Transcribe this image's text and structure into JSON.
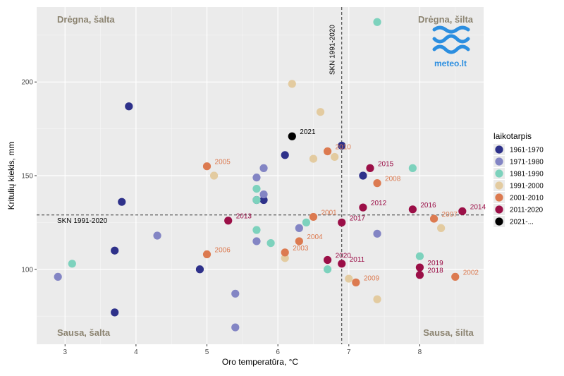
{
  "chart_data": {
    "type": "scatter",
    "title": "",
    "xlabel": "Oro temperatūra, °C",
    "ylabel": "Kritulių kiekis, mm",
    "xlim": [
      2.6,
      8.9
    ],
    "ylim": [
      60,
      240
    ],
    "x_ticks": [
      3,
      4,
      5,
      6,
      7,
      8
    ],
    "y_ticks": [
      100,
      150,
      200
    ],
    "grid": true,
    "legend_position": "right",
    "legend_title": "laikotarpis",
    "reference_lines": {
      "vertical": {
        "x": 6.9,
        "label": "SKN 1991-2020"
      },
      "horizontal": {
        "y": 129,
        "label": "SKN 1991-2020"
      }
    },
    "quadrant_labels": {
      "top_left": "Drėgna, šalta",
      "top_right": "Drėgna, šilta",
      "bottom_left": "Sausa, šalta",
      "bottom_right": "Sausa, šilta"
    },
    "series": [
      {
        "name": "1961-1970",
        "color": "#2e318a",
        "points": [
          {
            "x": 3.9,
            "y": 187
          },
          {
            "x": 3.8,
            "y": 136
          },
          {
            "x": 3.7,
            "y": 110
          },
          {
            "x": 3.7,
            "y": 77
          },
          {
            "x": 4.9,
            "y": 100
          },
          {
            "x": 5.8,
            "y": 137
          },
          {
            "x": 6.1,
            "y": 161
          },
          {
            "x": 6.9,
            "y": 166
          },
          {
            "x": 7.2,
            "y": 150
          },
          {
            "x": 5.7,
            "y": 137
          }
        ]
      },
      {
        "name": "1971-1980",
        "color": "#8385c4",
        "points": [
          {
            "x": 2.9,
            "y": 96
          },
          {
            "x": 4.3,
            "y": 118
          },
          {
            "x": 5.4,
            "y": 87
          },
          {
            "x": 5.4,
            "y": 69
          },
          {
            "x": 5.7,
            "y": 149
          },
          {
            "x": 5.8,
            "y": 154
          },
          {
            "x": 5.8,
            "y": 140
          },
          {
            "x": 5.7,
            "y": 115
          },
          {
            "x": 6.3,
            "y": 122
          },
          {
            "x": 7.4,
            "y": 119
          }
        ]
      },
      {
        "name": "1981-1990",
        "color": "#7dd2bd",
        "points": [
          {
            "x": 3.1,
            "y": 103
          },
          {
            "x": 5.7,
            "y": 143
          },
          {
            "x": 5.7,
            "y": 137
          },
          {
            "x": 5.7,
            "y": 121
          },
          {
            "x": 5.9,
            "y": 114
          },
          {
            "x": 6.4,
            "y": 125
          },
          {
            "x": 6.7,
            "y": 100
          },
          {
            "x": 7.4,
            "y": 232
          },
          {
            "x": 7.9,
            "y": 154
          },
          {
            "x": 8.0,
            "y": 107
          }
        ]
      },
      {
        "name": "1991-2000",
        "color": "#e3cba0",
        "points": [
          {
            "x": 5.1,
            "y": 150
          },
          {
            "x": 6.2,
            "y": 199
          },
          {
            "x": 6.6,
            "y": 184
          },
          {
            "x": 6.5,
            "y": 159
          },
          {
            "x": 6.8,
            "y": 160
          },
          {
            "x": 6.1,
            "y": 106
          },
          {
            "x": 7.0,
            "y": 95
          },
          {
            "x": 7.4,
            "y": 84
          },
          {
            "x": 8.3,
            "y": 122
          }
        ]
      },
      {
        "name": "2001-2010",
        "color": "#dc7a50",
        "points": [
          {
            "x": 6.5,
            "y": 128,
            "label": "2001"
          },
          {
            "x": 8.5,
            "y": 96,
            "label": "2002"
          },
          {
            "x": 6.1,
            "y": 109,
            "label": "2003"
          },
          {
            "x": 6.3,
            "y": 115,
            "label": "2004"
          },
          {
            "x": 5.0,
            "y": 155,
            "label": "2005"
          },
          {
            "x": 5.0,
            "y": 108,
            "label": "2006"
          },
          {
            "x": 8.2,
            "y": 127,
            "label": "2007"
          },
          {
            "x": 7.4,
            "y": 146,
            "label": "2008"
          },
          {
            "x": 7.1,
            "y": 93,
            "label": "2009"
          },
          {
            "x": 6.7,
            "y": 163,
            "label": "2010"
          }
        ]
      },
      {
        "name": "2011-2020",
        "color": "#9b0f47",
        "points": [
          {
            "x": 6.9,
            "y": 103,
            "label": "2011"
          },
          {
            "x": 7.2,
            "y": 133,
            "label": "2012"
          },
          {
            "x": 5.3,
            "y": 126,
            "label": "2013"
          },
          {
            "x": 8.6,
            "y": 131,
            "label": "2014"
          },
          {
            "x": 7.3,
            "y": 154,
            "label": "2015"
          },
          {
            "x": 7.9,
            "y": 132,
            "label": "2016"
          },
          {
            "x": 6.9,
            "y": 125,
            "label": "2017"
          },
          {
            "x": 8.0,
            "y": 97,
            "label": "2018"
          },
          {
            "x": 8.0,
            "y": 101,
            "label": "2019"
          },
          {
            "x": 6.7,
            "y": 105,
            "label": "2020"
          }
        ]
      },
      {
        "name": "2021-...",
        "color": "#000000",
        "points": [
          {
            "x": 6.2,
            "y": 171,
            "label": "2021"
          }
        ]
      }
    ]
  },
  "logo": {
    "text": "meteo.lt",
    "color": "#2b8ee0",
    "icon": "meteo-waves-logo"
  }
}
